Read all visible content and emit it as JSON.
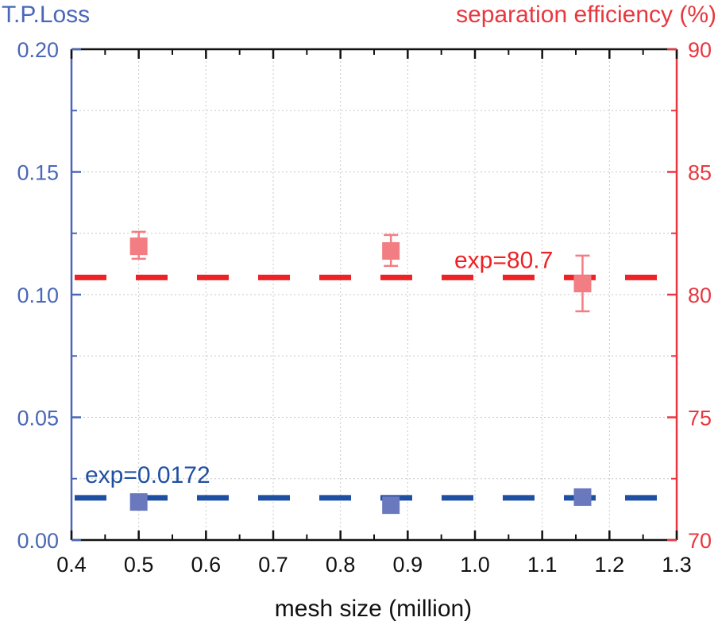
{
  "chart_data": {
    "type": "scatter",
    "title": "",
    "xlabel": "mesh size (million)",
    "ylabel_left": "T.P.Loss",
    "ylabel_right": "separation efficiency (%)",
    "xlim": [
      0.4,
      1.3
    ],
    "ylim_left": [
      0.0,
      0.2
    ],
    "ylim_right": [
      70,
      90
    ],
    "x_ticks": [
      "0.4",
      "0.5",
      "0.6",
      "0.7",
      "0.8",
      "0.9",
      "1.0",
      "1.1",
      "1.2",
      "1.3"
    ],
    "x_tick_values": [
      0.4,
      0.5,
      0.6,
      0.7,
      0.8,
      0.9,
      1.0,
      1.1,
      1.2,
      1.3
    ],
    "y_left_ticks": [
      "0.00",
      "0.05",
      "0.10",
      "0.15",
      "0.20"
    ],
    "y_left_tick_values": [
      0.0,
      0.05,
      0.1,
      0.15,
      0.2
    ],
    "y_right_ticks": [
      "70",
      "75",
      "80",
      "85",
      "90"
    ],
    "y_right_tick_values": [
      70,
      75,
      80,
      85,
      90
    ],
    "grid": true,
    "colors": {
      "left_axis": "#4a67b8",
      "right_axis": "#e8373f",
      "tp_loss_marker": "#6a78bd",
      "efficiency_marker": "#f27d82",
      "tp_loss_exp_line": "#1f4fa3",
      "efficiency_exp_line": "#ee2225"
    },
    "series": [
      {
        "name": "T.P.Loss",
        "axis": "left",
        "marker": "square",
        "x": [
          0.5,
          0.875,
          1.16
        ],
        "y": [
          0.0155,
          0.0142,
          0.0175
        ]
      },
      {
        "name": "separation efficiency",
        "axis": "right",
        "marker": "square",
        "x": [
          0.5,
          0.875,
          1.16
        ],
        "y": [
          81.97,
          81.78,
          80.45
        ],
        "error_low": [
          81.46,
          81.17,
          79.32
        ],
        "error_high": [
          82.56,
          82.43,
          81.59
        ]
      }
    ],
    "reference_lines": [
      {
        "name": "tp-loss-exp",
        "axis": "left",
        "value": 0.0172,
        "label": "exp=0.0172",
        "style": "dashed"
      },
      {
        "name": "efficiency-exp",
        "axis": "right",
        "value": 80.7,
        "label": "exp=80.7",
        "style": "dashed"
      }
    ]
  }
}
